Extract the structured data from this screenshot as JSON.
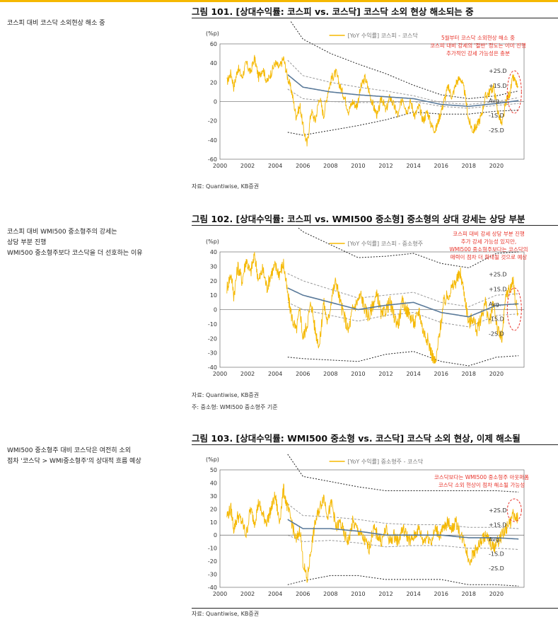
{
  "sidebar": {
    "c1": [
      "코스피 대비 코스닥 소외현상 해소 중"
    ],
    "c2": [
      "코스피 대비 WMI500 중소형주의 강세는",
      "상당 부분 진행",
      "WMI500 중소형주보다 코스닥을 더 선호하는 이유"
    ],
    "c3": [
      "WMI500 중소형주 대비 코스닥은 여전히 소외",
      "점차 '코스닥 > WMI중소형주'의 상대적 흐름 예상"
    ]
  },
  "colors": {
    "accent": "#f5b800",
    "series": "#f5b800",
    "mean": "#5a7a9a",
    "band1": "#999999",
    "band2": "#222222",
    "note": "#e8332a"
  },
  "chart_data": [
    {
      "id": "c1",
      "type": "line",
      "title": "그림 101. [상대수익률: 코스피 vs. 코스닥] 코스닥 소외 현상 해소되는 중",
      "ylabel": "(%p)",
      "ylim": [
        -60,
        60
      ],
      "yticks": [
        -60,
        -40,
        -20,
        0,
        20,
        40,
        60
      ],
      "xlim": [
        2000,
        2022
      ],
      "xticks": [
        2000,
        2002,
        2004,
        2006,
        2008,
        2010,
        2012,
        2014,
        2016,
        2018,
        2020
      ],
      "legend": "[YoY 수익률] 코스피 - 코스닥",
      "legend_position": "top-center",
      "band_labels": [
        "+2S.D",
        "+1S.D",
        "Avg.",
        "-1S.D",
        "-2S.D"
      ],
      "annotation": [
        "5월부터 코스닥 소외현상 해소 중",
        "코스피 대비 강세의 '절반' 정도는 이미 진행",
        "추가적인 강세 가능성은 충분"
      ],
      "bands_start": 2004.9,
      "series": [
        {
          "name": "[YoY 수익률] 코스피 - 코스닥",
          "x": [
            2000.5,
            2000.8,
            2001.0,
            2001.3,
            2001.6,
            2001.9,
            2002.2,
            2002.5,
            2002.8,
            2003.1,
            2003.4,
            2003.7,
            2004.0,
            2004.3,
            2004.6,
            2004.9,
            2005.2,
            2005.5,
            2005.8,
            2006.0,
            2006.3,
            2006.6,
            2006.9,
            2007.2,
            2007.5,
            2007.8,
            2008.1,
            2008.4,
            2008.7,
            2009.0,
            2009.3,
            2009.6,
            2009.9,
            2010.2,
            2010.5,
            2010.8,
            2011.1,
            2011.4,
            2011.7,
            2012.0,
            2012.3,
            2012.6,
            2012.9,
            2013.2,
            2013.5,
            2013.8,
            2014.1,
            2014.4,
            2014.7,
            2015.0,
            2015.3,
            2015.6,
            2015.9,
            2016.2,
            2016.5,
            2016.8,
            2017.1,
            2017.4,
            2017.7,
            2018.0,
            2018.3,
            2018.6,
            2018.9,
            2019.2,
            2019.5,
            2019.8,
            2020.1,
            2020.4,
            2020.7,
            2021.0,
            2021.2,
            2021.4,
            2021.6
          ],
          "y": [
            20,
            30,
            15,
            35,
            25,
            40,
            30,
            45,
            25,
            35,
            20,
            30,
            40,
            35,
            45,
            25,
            10,
            -15,
            -5,
            -25,
            -45,
            -10,
            -20,
            5,
            -15,
            10,
            25,
            30,
            15,
            5,
            -10,
            0,
            -5,
            15,
            25,
            10,
            -5,
            -15,
            5,
            -10,
            5,
            -5,
            -15,
            5,
            -10,
            0,
            -15,
            -5,
            -20,
            -10,
            -25,
            -30,
            -15,
            0,
            15,
            5,
            20,
            25,
            10,
            -20,
            -30,
            -25,
            -15,
            5,
            10,
            15,
            -10,
            -25,
            0,
            10,
            25,
            20,
            10
          ]
        }
      ],
      "avg": {
        "x": [
          2004.9,
          2006,
          2008,
          2010,
          2012,
          2014,
          2016,
          2018,
          2020,
          2021.6
        ],
        "y": [
          28,
          15,
          10,
          7,
          5,
          3,
          -3,
          -5,
          -2,
          1
        ]
      },
      "sd1": {
        "x": [
          2004.9,
          2006,
          2008,
          2010,
          2012,
          2014,
          2016,
          2018,
          2020,
          2021.6
        ],
        "y": [
          15,
          12,
          10,
          8,
          6,
          3,
          2,
          2,
          2,
          3
        ]
      },
      "sd2": {
        "x": [
          2004.9,
          2006,
          2008,
          2010,
          2012,
          2014,
          2016,
          2018,
          2020,
          2021.6
        ],
        "y": [
          30,
          25,
          20,
          16,
          12,
          7,
          5,
          4,
          4,
          5
        ]
      }
    },
    {
      "id": "c2",
      "type": "line",
      "title": "그림 102. [상대수익률: 코스피 vs. WMI500 중소형] 중소형의 상대 강세는 상당 부분",
      "ylabel": "(%p)",
      "ylim": [
        -40,
        40
      ],
      "yticks": [
        -40,
        -30,
        -20,
        -10,
        0,
        10,
        20,
        30,
        40
      ],
      "xlim": [
        2000,
        2022
      ],
      "xticks": [
        2000,
        2002,
        2004,
        2006,
        2008,
        2010,
        2012,
        2014,
        2016,
        2018,
        2020
      ],
      "legend": "[YoY 수익률] 코스피 - 중소형주",
      "legend_position": "top-center",
      "band_labels": [
        "+2S.D",
        "+1S.D",
        "Avg.",
        "-1S.D",
        "-2S.D"
      ],
      "annotation": [
        "코스피 대비 강세 상당 부분 진행",
        "추가 강세 가능성 있지만,",
        "WMI500 중소형주보다는 코스닥의",
        "매력이 점차 더 확대될 것으로 예상"
      ],
      "bands_start": 2004.9,
      "series": [
        {
          "name": "[YoY 수익률] 코스피 - 중소형주",
          "x": [
            2000.5,
            2000.8,
            2001.0,
            2001.3,
            2001.6,
            2001.9,
            2002.2,
            2002.5,
            2002.8,
            2003.1,
            2003.4,
            2003.7,
            2004.0,
            2004.3,
            2004.6,
            2004.9,
            2005.2,
            2005.5,
            2005.8,
            2006.0,
            2006.3,
            2006.6,
            2006.9,
            2007.2,
            2007.5,
            2007.8,
            2008.1,
            2008.4,
            2008.7,
            2009.0,
            2009.3,
            2009.6,
            2009.9,
            2010.2,
            2010.5,
            2010.8,
            2011.1,
            2011.4,
            2011.7,
            2012.0,
            2012.3,
            2012.6,
            2012.9,
            2013.2,
            2013.5,
            2013.8,
            2014.1,
            2014.4,
            2014.7,
            2015.0,
            2015.3,
            2015.6,
            2015.9,
            2016.2,
            2016.5,
            2016.8,
            2017.1,
            2017.4,
            2017.7,
            2018.0,
            2018.3,
            2018.6,
            2018.9,
            2019.2,
            2019.5,
            2019.8,
            2020.1,
            2020.4,
            2020.7,
            2021.0,
            2021.2,
            2021.4,
            2021.6
          ],
          "y": [
            15,
            25,
            10,
            30,
            20,
            35,
            25,
            38,
            20,
            28,
            15,
            25,
            30,
            25,
            32,
            10,
            -5,
            -15,
            0,
            -20,
            -10,
            5,
            -15,
            -25,
            5,
            -10,
            10,
            20,
            5,
            -5,
            -15,
            0,
            5,
            10,
            0,
            -5,
            5,
            10,
            -5,
            0,
            5,
            -5,
            -10,
            5,
            0,
            -5,
            -10,
            0,
            -15,
            -20,
            -30,
            -38,
            -15,
            5,
            10,
            15,
            20,
            25,
            10,
            -10,
            -5,
            -15,
            -5,
            5,
            -10,
            5,
            -15,
            -20,
            10,
            15,
            20,
            5,
            -5
          ]
        }
      ],
      "avg": {
        "x": [
          2004.9,
          2006,
          2008,
          2010,
          2012,
          2014,
          2016,
          2018,
          2020,
          2021.6
        ],
        "y": [
          15,
          10,
          5,
          0,
          3,
          5,
          -2,
          -5,
          3,
          4
        ]
      },
      "sd1": {
        "x": [
          2004.9,
          2006,
          2008,
          2010,
          2012,
          2014,
          2016,
          2018,
          2020,
          2021.6
        ],
        "y": [
          10,
          10,
          9,
          8,
          7,
          7,
          7,
          7,
          7,
          7
        ]
      },
      "sd2": {
        "x": [
          2004.9,
          2006,
          2008,
          2010,
          2012,
          2014,
          2016,
          2018,
          2020,
          2021.6
        ],
        "y": [
          24,
          22,
          20,
          18,
          17,
          17,
          17,
          17,
          18,
          18
        ]
      }
    },
    {
      "id": "c3",
      "type": "line",
      "title": "그림 103. [상대수익률: WMI500 중소형 vs. 코스닥] 코스닥 소외 현상, 이제 해소될",
      "ylabel": "(%p)",
      "ylim": [
        -40,
        50
      ],
      "yticks": [
        -40,
        -30,
        -20,
        -10,
        0,
        10,
        20,
        30,
        40,
        50
      ],
      "xlim": [
        2000,
        2022
      ],
      "xticks": [
        2000,
        2002,
        2004,
        2006,
        2008,
        2010,
        2012,
        2014,
        2016,
        2018,
        2020
      ],
      "legend": "[YoY 수익률] 중소형주 - 코스닥",
      "legend_position": "top-center",
      "band_labels": [
        "+2S.D",
        "+1S.D",
        "Avg.",
        "-1S.D",
        "-2S.D"
      ],
      "annotation": [
        "코스닥보다는 WMI500 중소형주 아웃퍼폼",
        "코스닥 소외 현상이 점차 해소될 가능성"
      ],
      "bands_start": 2004.9,
      "series": [
        {
          "name": "[YoY 수익률] 중소형주 - 코스닥",
          "x": [
            2000.5,
            2000.8,
            2001.0,
            2001.3,
            2001.6,
            2001.9,
            2002.2,
            2002.5,
            2002.8,
            2003.1,
            2003.4,
            2003.7,
            2004.0,
            2004.3,
            2004.6,
            2004.9,
            2005.2,
            2005.5,
            2005.8,
            2006.0,
            2006.3,
            2006.6,
            2006.9,
            2007.2,
            2007.5,
            2007.8,
            2008.1,
            2008.4,
            2008.7,
            2009.0,
            2009.3,
            2009.6,
            2009.9,
            2010.2,
            2010.5,
            2010.8,
            2011.1,
            2011.4,
            2011.7,
            2012.0,
            2012.3,
            2012.6,
            2012.9,
            2013.2,
            2013.5,
            2013.8,
            2014.1,
            2014.4,
            2014.7,
            2015.0,
            2015.3,
            2015.6,
            2015.9,
            2016.2,
            2016.5,
            2016.8,
            2017.1,
            2017.4,
            2017.7,
            2018.0,
            2018.3,
            2018.6,
            2018.9,
            2019.2,
            2019.5,
            2019.8,
            2020.1,
            2020.4,
            2020.7,
            2021.0,
            2021.2,
            2021.4,
            2021.6
          ],
          "y": [
            15,
            20,
            5,
            15,
            10,
            0,
            20,
            10,
            25,
            15,
            10,
            20,
            30,
            10,
            35,
            20,
            10,
            -5,
            5,
            -20,
            -35,
            -10,
            10,
            20,
            30,
            15,
            25,
            5,
            10,
            0,
            -5,
            10,
            5,
            0,
            -5,
            -10,
            5,
            0,
            -5,
            5,
            -5,
            0,
            -5,
            5,
            0,
            -5,
            0,
            5,
            -5,
            0,
            -5,
            5,
            0,
            5,
            10,
            5,
            10,
            0,
            -5,
            -20,
            -15,
            -10,
            -5,
            0,
            -5,
            -10,
            -5,
            0,
            5,
            10,
            15,
            12,
            15
          ]
        }
      ],
      "avg": {
        "x": [
          2004.9,
          2006,
          2008,
          2010,
          2012,
          2014,
          2016,
          2018,
          2020,
          2021.6
        ],
        "y": [
          12,
          5,
          5,
          3,
          0,
          0,
          0,
          -2,
          -2,
          -3
        ]
      },
      "sd1": {
        "x": [
          2004.9,
          2006,
          2008,
          2010,
          2012,
          2014,
          2016,
          2018,
          2020,
          2021.6
        ],
        "y": [
          12,
          10,
          9,
          9,
          9,
          8,
          8,
          8,
          8,
          8
        ]
      },
      "sd2": {
        "x": [
          2004.9,
          2006,
          2008,
          2010,
          2012,
          2014,
          2016,
          2018,
          2020,
          2021.6
        ],
        "y": [
          25,
          20,
          18,
          17,
          17,
          17,
          17,
          18,
          18,
          18
        ]
      }
    }
  ],
  "sources": {
    "c1": "자료: Quantiwise, KB증권",
    "c2": "자료: Quantiwise, KB증권",
    "c2_note": "주: 중소형: WMI500 중소형주 기준",
    "c3": "자료: Quantiwise, KB증권"
  }
}
